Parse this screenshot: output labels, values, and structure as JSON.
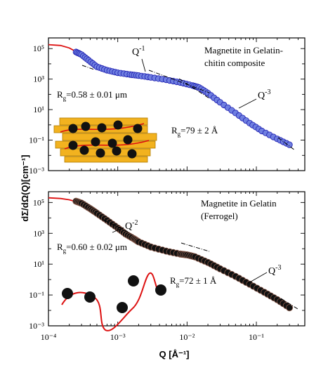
{
  "colors": {
    "top_marker_fill": "#6f7fe0",
    "top_marker_edge": "#1d1db0",
    "bottom_marker_fill": "#111111",
    "bottom_marker_edge": "#8a5a4a",
    "fit_line": "#dd1111",
    "chitin_fiber": "#f2b21f",
    "chitin_edge": "#b07a00"
  },
  "chart_data": {
    "type": "scatter",
    "x_scale": "log",
    "y_scale": "log",
    "xlim": [
      0.0001,
      0.5
    ],
    "ylim": [
      0.001,
      500000
    ],
    "xlabel": "Q [Å⁻¹]",
    "ylabel": "dΣ/dΩ(Q)[cm⁻¹]",
    "x_ticks": [
      "10⁻⁴",
      "10⁻³",
      "10⁻²",
      "10⁻¹"
    ],
    "y_ticks": [
      "10⁻³",
      "10⁻¹",
      "10¹",
      "10³",
      "10⁵"
    ],
    "panels": [
      {
        "legend": "Magnetite in Gelatin-chitin composite",
        "legend_lines": [
          "Magnetite in Gelatin-",
          "chitin composite"
        ],
        "series": [
          {
            "kind": "data",
            "points": [
              [
                0.00025,
                60000
              ],
              [
                0.0003,
                40000
              ],
              [
                0.00038,
                17000
              ],
              [
                0.0005,
                6500
              ],
              [
                0.0007,
                3800
              ],
              [
                0.001,
                2600
              ],
              [
                0.0015,
                2000
              ],
              [
                0.002,
                1700
              ],
              [
                0.003,
                1300
              ],
              [
                0.005,
                900
              ],
              [
                0.008,
                600
              ],
              [
                0.012,
                380
              ],
              [
                0.015,
                280
              ],
              [
                0.02,
                120
              ],
              [
                0.03,
                30
              ],
              [
                0.05,
                6
              ],
              [
                0.08,
                1.3
              ],
              [
                0.12,
                0.4
              ],
              [
                0.2,
                0.12
              ],
              [
                0.3,
                0.05
              ]
            ]
          },
          {
            "kind": "fit",
            "points": [
              [
                0.0001,
                180000
              ],
              [
                0.00015,
                160000
              ],
              [
                0.0002,
                110000
              ],
              [
                0.0003,
                40000
              ],
              [
                0.0004,
                14000
              ],
              [
                0.0006,
                5000
              ],
              [
                0.0008,
                3200
              ],
              [
                0.001,
                2600
              ],
              [
                0.002,
                1700
              ],
              [
                0.004,
                1050
              ],
              [
                0.008,
                600
              ],
              [
                0.012,
                380
              ],
              [
                0.015,
                280
              ],
              [
                0.02,
                120
              ],
              [
                0.03,
                30
              ],
              [
                0.05,
                6
              ],
              [
                0.08,
                1.3
              ],
              [
                0.12,
                0.4
              ],
              [
                0.2,
                0.12
              ],
              [
                0.3,
                0.05
              ]
            ]
          }
        ],
        "annotations": {
          "rg_large_prefix": "R",
          "rg_large_sub": "g",
          "rg_large_value": "=0.58 ± 0.01 μm",
          "rg_small_prefix": "R",
          "rg_small_sub": "g",
          "rg_small_value": "=79 ± 2 Å",
          "slope_a_base": "Q",
          "slope_a_exp": "-1",
          "slope_b_base": "Q",
          "slope_b_exp": "-3"
        }
      },
      {
        "legend": "Magnetite in Gelatin (Ferrogel)",
        "legend_lines": [
          "Magnetite in Gelatin",
          "(Ferrogel)"
        ],
        "series": [
          {
            "kind": "data",
            "points": [
              [
                0.00025,
                120000
              ],
              [
                0.0003,
                90000
              ],
              [
                0.0004,
                40000
              ],
              [
                0.0005,
                20000
              ],
              [
                0.0007,
                7000
              ],
              [
                0.001,
                2200
              ],
              [
                0.0013,
                900
              ],
              [
                0.0017,
                450
              ],
              [
                0.002,
                280
              ],
              [
                0.003,
                130
              ],
              [
                0.005,
                70
              ],
              [
                0.008,
                45
              ],
              [
                0.01,
                40
              ],
              [
                0.013,
                30
              ],
              [
                0.02,
                13
              ],
              [
                0.03,
                5
              ],
              [
                0.05,
                1.6
              ],
              [
                0.08,
                0.5
              ],
              [
                0.13,
                0.15
              ],
              [
                0.2,
                0.05
              ],
              [
                0.3,
                0.015
              ]
            ]
          },
          {
            "kind": "fit",
            "points": [
              [
                0.0001,
                200000
              ],
              [
                0.00015,
                180000
              ],
              [
                0.0002,
                150000
              ],
              [
                0.0003,
                90000
              ],
              [
                0.0005,
                20000
              ],
              [
                0.001,
                2200
              ],
              [
                0.002,
                280
              ],
              [
                0.004,
                95
              ],
              [
                0.008,
                45
              ],
              [
                0.012,
                33
              ],
              [
                0.02,
                13
              ],
              [
                0.03,
                5
              ],
              [
                0.05,
                1.6
              ],
              [
                0.08,
                0.5
              ],
              [
                0.13,
                0.15
              ],
              [
                0.2,
                0.05
              ],
              [
                0.3,
                0.015
              ]
            ]
          }
        ],
        "annotations": {
          "rg_large_prefix": "R",
          "rg_large_sub": "g",
          "rg_large_value": "=0.60 ± 0.02 μm",
          "rg_small_prefix": "R",
          "rg_small_sub": "g",
          "rg_small_value": "=72 ± 1 Å",
          "slope_a_base": "Q",
          "slope_a_exp": "-2",
          "slope_b_base": "Q",
          "slope_b_exp": "-3"
        }
      }
    ]
  }
}
